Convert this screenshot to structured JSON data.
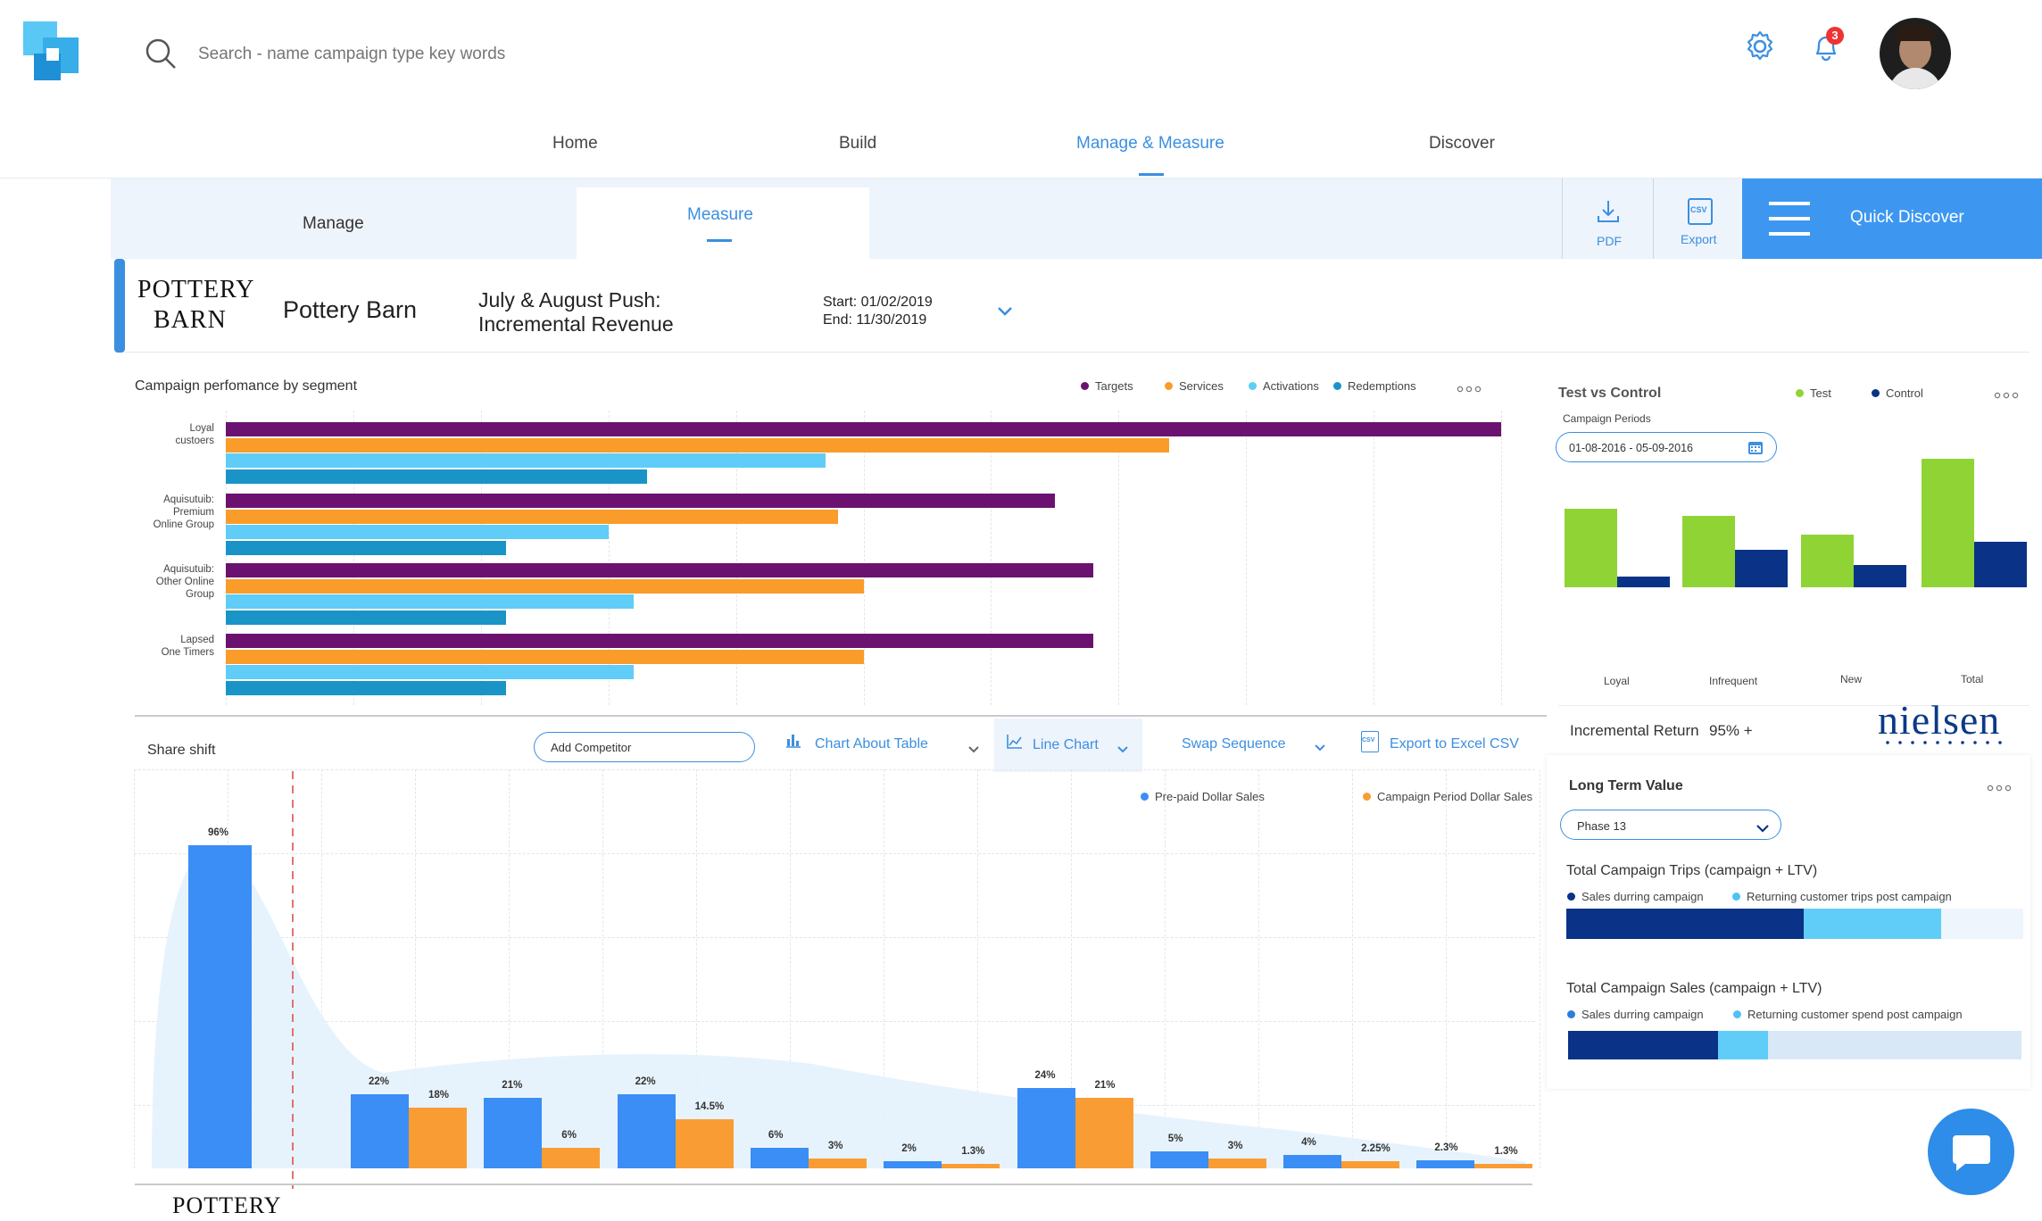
{
  "header": {
    "search_placeholder": "Search - name campaign type key words",
    "notification_count": "3"
  },
  "nav": {
    "items": [
      {
        "label": "Home"
      },
      {
        "label": "Build"
      },
      {
        "label": "Manage & Measure",
        "active": true
      },
      {
        "label": "Discover"
      }
    ]
  },
  "subnav": {
    "manage": "Manage",
    "measure": "Measure",
    "pdf": "PDF",
    "export": "Export",
    "csv_badge": "CSV",
    "quick_discover": "Quick Discover"
  },
  "campaign": {
    "brand_logo_line1": "POTTERY",
    "brand_logo_line2": "BARN",
    "brand_name": "Pottery Barn",
    "title_line1": "July & August Push:",
    "title_line2": "Incremental Revenue",
    "start": "Start: 01/02/2019",
    "end": "End: 11/30/2019"
  },
  "segment_chart": {
    "title": "Campaign perfomance by segment",
    "legend": [
      {
        "name": "Targets",
        "color": "#6b1270"
      },
      {
        "name": "Services",
        "color": "#f99c2a"
      },
      {
        "name": "Activations",
        "color": "#5fcdf7"
      },
      {
        "name": "Redemptions",
        "color": "#1a94c7"
      }
    ],
    "chart_data": {
      "type": "bar",
      "orientation": "horizontal",
      "categories": [
        "Loyal\ncustoers",
        "Aquisutuib:\nPremium\nOnline Group",
        "Aquisutuib:\nOther Online\nGroup",
        "Lapsed\nOne Timers"
      ],
      "series": [
        {
          "name": "Targets",
          "values": [
            100,
            65,
            68,
            68
          ]
        },
        {
          "name": "Services",
          "values": [
            74,
            48,
            50,
            50
          ]
        },
        {
          "name": "Activations",
          "values": [
            47,
            30,
            32,
            32
          ]
        },
        {
          "name": "Redemptions",
          "values": [
            33,
            22,
            22,
            22
          ]
        }
      ],
      "xlim": [
        0,
        100
      ],
      "grid": true
    }
  },
  "test_vs_control": {
    "title": "Test vs Control",
    "legend": [
      {
        "name": "Test",
        "color": "#8fd434"
      },
      {
        "name": "Control",
        "color": "#0a3387"
      }
    ],
    "period_label": "Campaign Periods",
    "period_value": "01-08-2016 - 05-09-2016",
    "chart_data": {
      "type": "bar",
      "categories": [
        "Loyal",
        "Infrequent",
        "New",
        "Total"
      ],
      "series": [
        {
          "name": "Test",
          "values": [
            61,
            55,
            41,
            99
          ]
        },
        {
          "name": "Control",
          "values": [
            8,
            29,
            17,
            35
          ]
        }
      ],
      "ylim": [
        0,
        100
      ]
    },
    "incremental_return_label": "Incremental Return",
    "incremental_return_value": "95% +",
    "partner_logo": "nielsen"
  },
  "share_shift": {
    "title": "Share shift",
    "add_competitor": "Add Competitor",
    "chart_about_table": "Chart About Table",
    "line_chart": "Line Chart",
    "swap_sequence": "Swap Sequence",
    "export_csv": "Export to Excel CSV",
    "legend": [
      {
        "name": "Pre-paid Dollar Sales",
        "color": "#3a8ef5"
      },
      {
        "name": "Campaign Period Dollar Sales",
        "color": "#fa9c34"
      }
    ],
    "footer_logo": "POTTERY",
    "chart_data": {
      "type": "bar",
      "series": [
        {
          "name": "Pre-paid Dollar Sales",
          "values": [
            96,
            22,
            21,
            22,
            6,
            2,
            24,
            5,
            4,
            2.3
          ]
        },
        {
          "name": "Campaign Period Dollar Sales",
          "values": [
            null,
            18,
            6,
            14.5,
            3,
            1.3,
            21,
            3,
            2.25,
            1.3
          ]
        }
      ],
      "labels_pre": [
        "96%",
        "22%",
        "21%",
        "22%",
        "6%",
        "2%",
        "24%",
        "5%",
        "4%",
        "2.3%"
      ],
      "labels_campaign": [
        "",
        "18%",
        "6%",
        "14.5%",
        "3%",
        "1.3%",
        "21%",
        "3%",
        "2.25%",
        "1.3%"
      ],
      "ylim": [
        0,
        100
      ],
      "grid": true
    }
  },
  "long_term_value": {
    "title": "Long Term Value",
    "phase": "Phase 13",
    "trips": {
      "title": "Total Campaign Trips (campaign + LTV)",
      "legend": [
        "Sales durring campaign",
        "Returning customer trips post campaign"
      ],
      "values": [
        0.52,
        0.3
      ]
    },
    "sales": {
      "title": "Total Campaign Sales  (campaign + LTV)",
      "legend": [
        "Sales durring campaign",
        "Returning customer spend post campaign"
      ],
      "values": [
        0.33,
        0.11
      ]
    }
  }
}
